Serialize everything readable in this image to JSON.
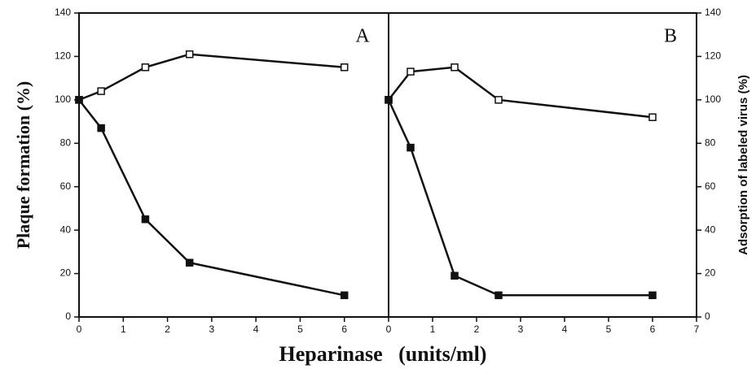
{
  "chart_data": [
    {
      "type": "line",
      "label": "A",
      "ylabel": "Plaque formation (%)",
      "yaxis_side": "left",
      "xlim": [
        0,
        7
      ],
      "xticks": [
        0,
        1,
        2,
        3,
        4,
        5,
        6
      ],
      "ylim": [
        0,
        140
      ],
      "yticks": [
        0,
        20,
        40,
        60,
        80,
        100,
        120,
        140
      ],
      "series": [
        {
          "marker": "open",
          "color": "#111111",
          "x": [
            0,
            0.5,
            1.5,
            2.5,
            6
          ],
          "values": [
            100,
            104,
            115,
            121,
            115
          ]
        },
        {
          "marker": "filled",
          "color": "#111111",
          "x": [
            0,
            0.5,
            1.5,
            2.5,
            6
          ],
          "values": [
            100,
            87,
            45,
            25,
            10
          ]
        }
      ]
    },
    {
      "type": "line",
      "label": "B",
      "ylabel": "Adsorption of labeled virus (%)",
      "yaxis_side": "right",
      "xlim": [
        0,
        7
      ],
      "xticks": [
        0,
        1,
        2,
        3,
        4,
        5,
        6,
        7
      ],
      "ylim": [
        0,
        140
      ],
      "yticks": [
        0,
        20,
        40,
        60,
        80,
        100,
        120,
        140
      ],
      "series": [
        {
          "marker": "open",
          "color": "#111111",
          "x": [
            0,
            0.5,
            1.5,
            2.5,
            6
          ],
          "values": [
            100,
            113,
            115,
            100,
            92
          ]
        },
        {
          "marker": "filled",
          "color": "#111111",
          "x": [
            0,
            0.5,
            1.5,
            2.5,
            6
          ],
          "values": [
            100,
            78,
            19,
            10,
            10
          ]
        }
      ]
    }
  ],
  "xlabel": "Heparinase   (units/ml)"
}
